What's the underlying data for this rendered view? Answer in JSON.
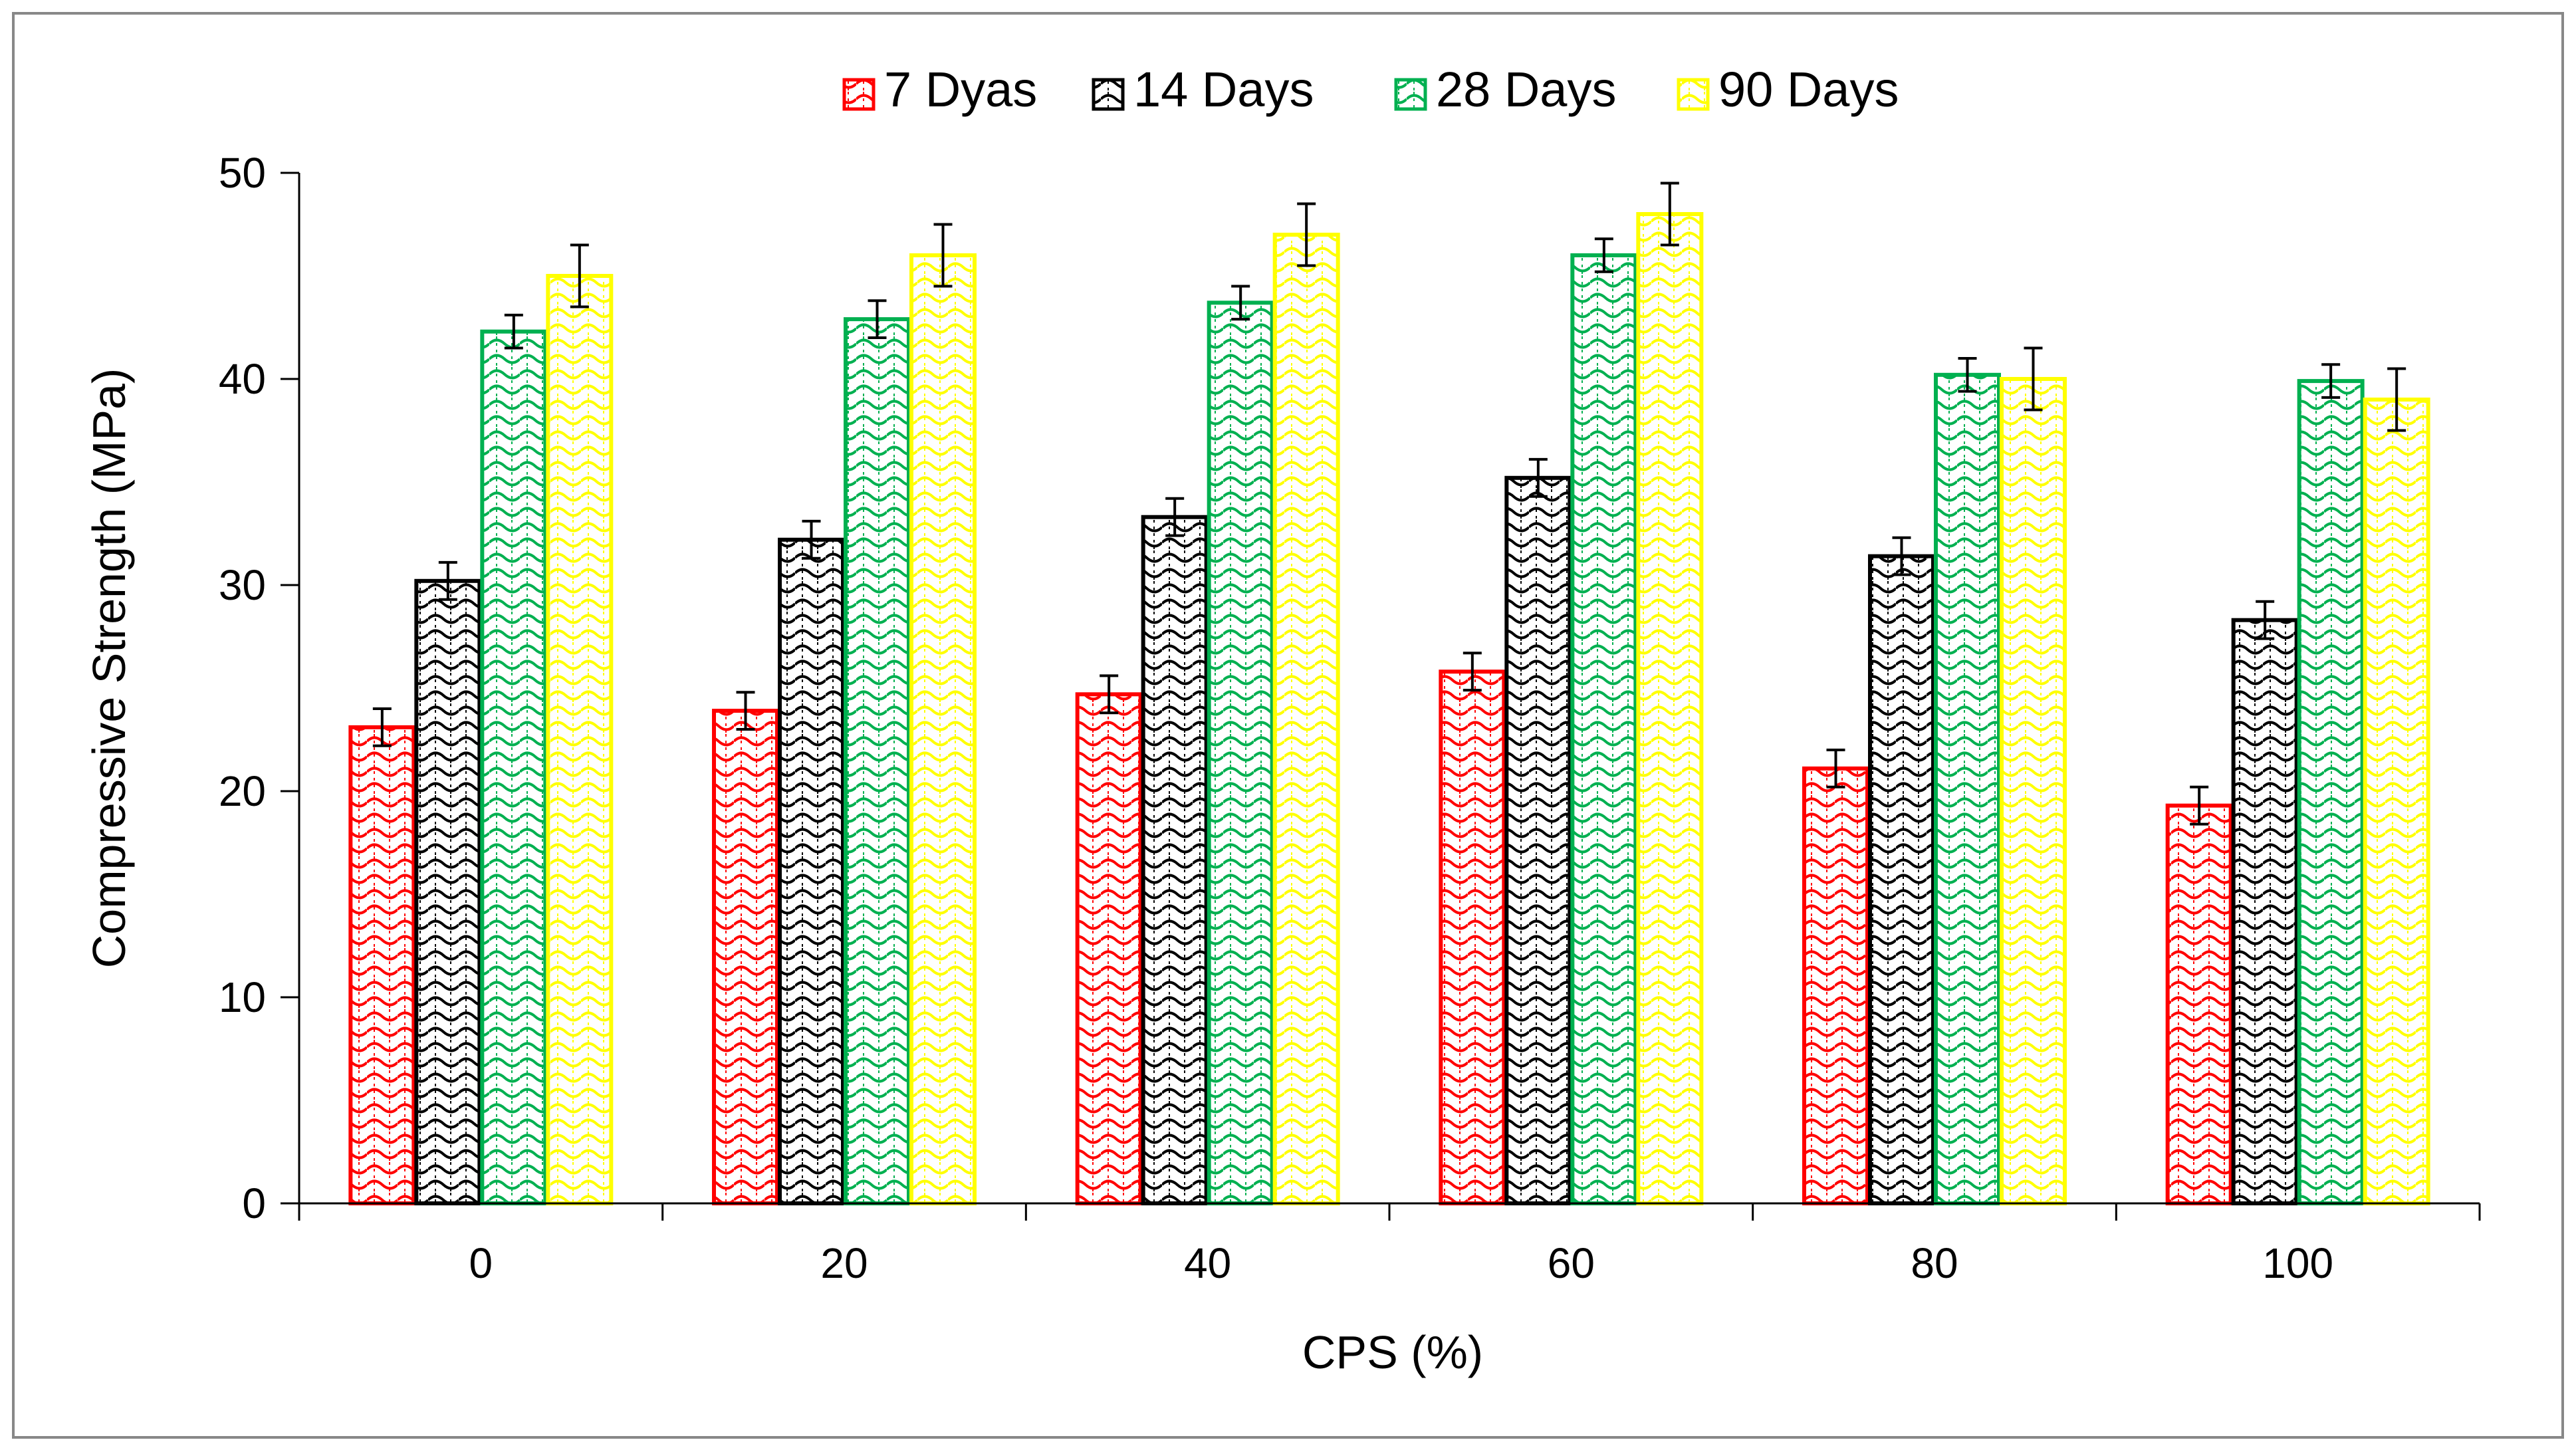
{
  "chart_data": {
    "type": "bar",
    "title": "",
    "xlabel": "CPS (%)",
    "ylabel": "Compressive Strength (MPa)",
    "ylim": [
      0,
      50
    ],
    "yticks": [
      0,
      10,
      20,
      30,
      40,
      50
    ],
    "grid": false,
    "legend_position": "top-center",
    "categories": [
      "0",
      "20",
      "40",
      "60",
      "80",
      "100"
    ],
    "series": [
      {
        "name": "7 Dyas",
        "color": "#ff0000",
        "values": [
          23.1,
          23.9,
          24.7,
          25.8,
          21.1,
          19.3
        ],
        "errors": [
          0.9,
          0.9,
          0.9,
          0.9,
          0.9,
          0.9
        ]
      },
      {
        "name": "14 Days",
        "color": "#000000",
        "values": [
          30.2,
          32.2,
          33.3,
          35.2,
          31.4,
          28.3
        ],
        "errors": [
          0.9,
          0.9,
          0.9,
          0.9,
          0.9,
          0.9
        ]
      },
      {
        "name": "28 Days",
        "color": "#00b050",
        "values": [
          42.3,
          42.9,
          43.7,
          46.0,
          40.2,
          39.9
        ],
        "errors": [
          0.8,
          0.9,
          0.8,
          0.8,
          0.8,
          0.8
        ]
      },
      {
        "name": "90 Days",
        "color": "#ffff00",
        "values": [
          45.0,
          46.0,
          47.0,
          48.0,
          40.0,
          39.0
        ],
        "errors": [
          1.5,
          1.5,
          1.5,
          1.5,
          1.5,
          1.5
        ]
      }
    ]
  }
}
